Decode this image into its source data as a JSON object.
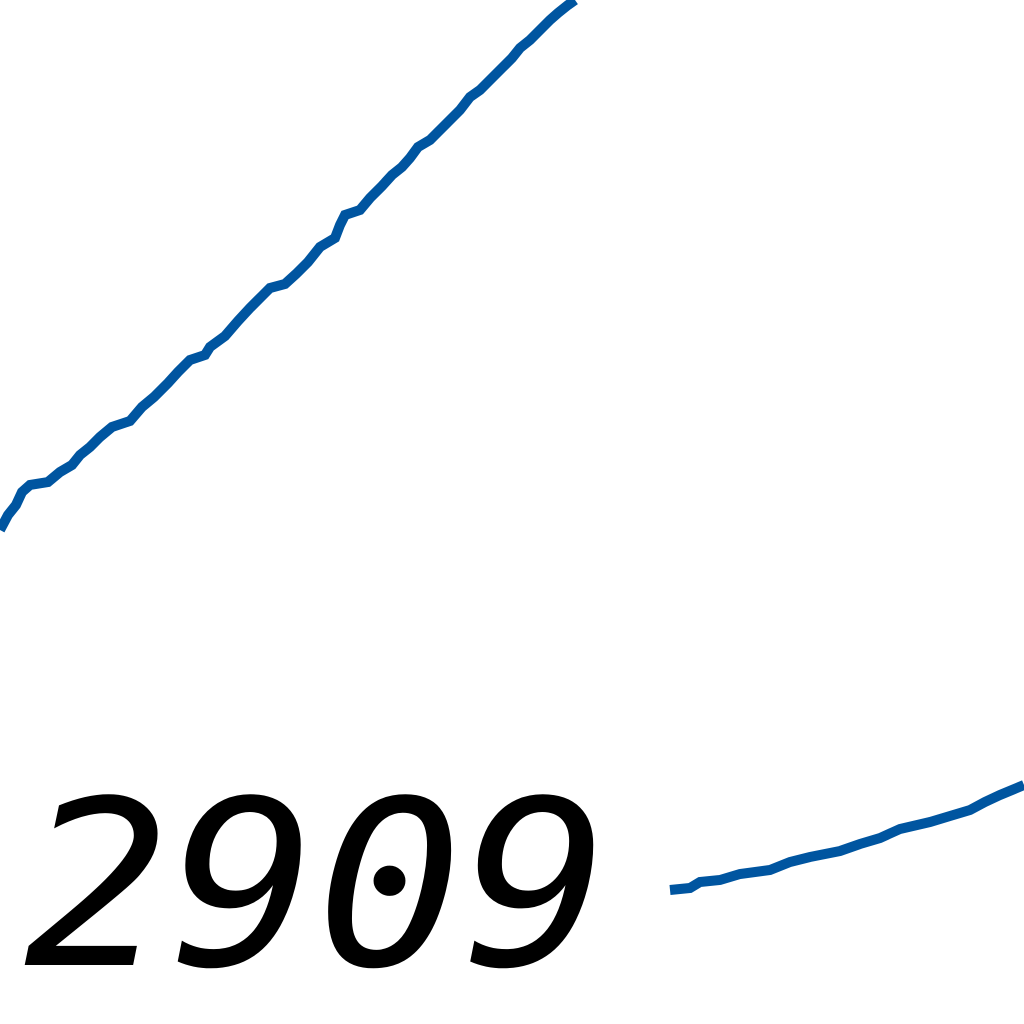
{
  "map": {
    "contour_label": "2909",
    "colors": {
      "background": "#ffffff",
      "contour_line": "#0055a0",
      "label_text": "#000000"
    }
  }
}
